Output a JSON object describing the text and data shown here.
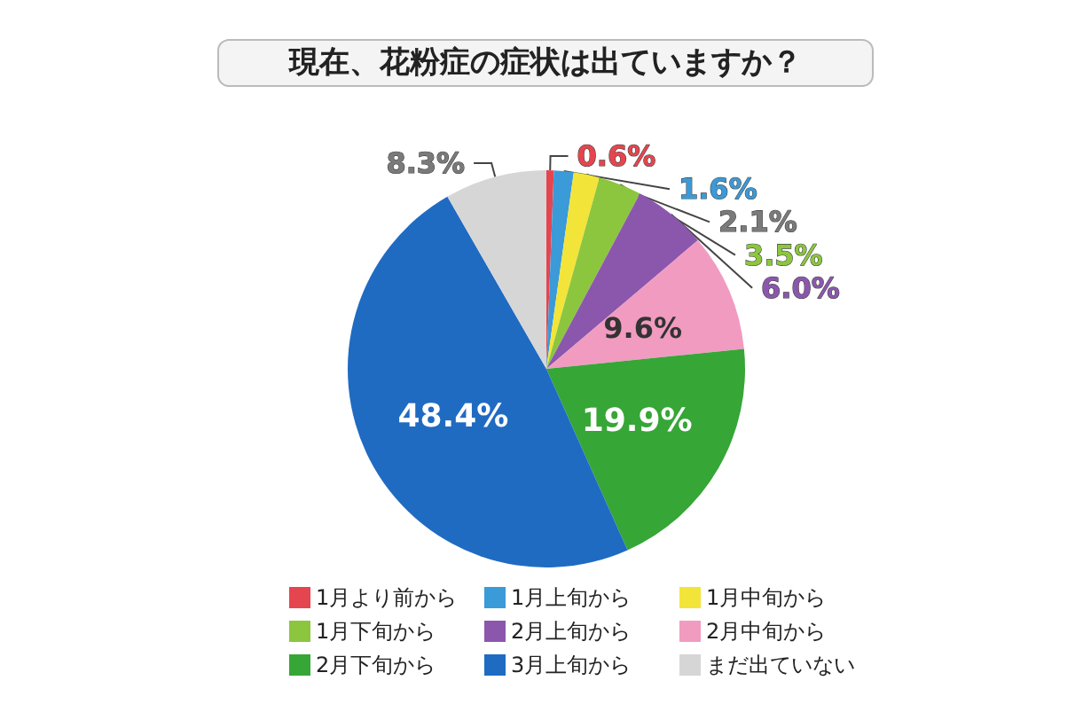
{
  "chart_data": {
    "type": "pie",
    "title": "現在、花粉症の症状は出ていますか？",
    "categories": [
      "1月より前から",
      "1月上旬から",
      "1月中旬から",
      "1月下旬から",
      "2月上旬から",
      "2月中旬から",
      "2月下旬から",
      "3月上旬から",
      "まだ出ていない"
    ],
    "values": [
      0.6,
      1.6,
      2.1,
      3.5,
      6.0,
      9.6,
      19.9,
      48.4,
      8.3
    ],
    "value_labels": [
      "0.6%",
      "1.6%",
      "2.1%",
      "3.5%",
      "6.0%",
      "9.6%",
      "19.9%",
      "48.4%",
      "8.3%"
    ],
    "colors": [
      "#e5454f",
      "#3b9ad8",
      "#f3e43a",
      "#8cc63f",
      "#8b57ad",
      "#f19bc1",
      "#36a637",
      "#1f6bc2",
      "#d6d6d6"
    ],
    "legend": "bottom"
  }
}
